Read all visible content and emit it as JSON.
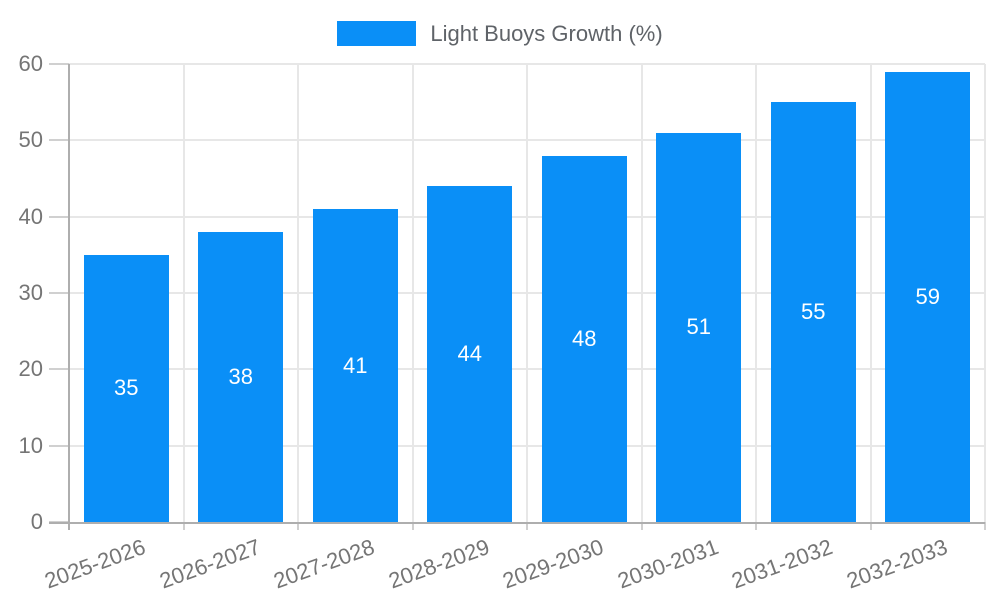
{
  "legend": {
    "label": "Light Buoys Growth (%)"
  },
  "chart_data": {
    "type": "bar",
    "title": "Light Buoys Growth (%)",
    "categories": [
      "2025-2026",
      "2026-2027",
      "2027-2028",
      "2028-2029",
      "2029-2030",
      "2030-2031",
      "2031-2032",
      "2032-2033"
    ],
    "values": [
      35,
      38,
      41,
      44,
      48,
      51,
      55,
      59
    ],
    "xlabel": "",
    "ylabel": "",
    "ylim": [
      0,
      60
    ],
    "yticks": [
      0,
      10,
      20,
      30,
      40,
      50,
      60
    ],
    "grid": true,
    "legend_position": "top-center",
    "value_labels": "centered-inside-bars-white"
  },
  "colors": {
    "bar": "#0a8ff7",
    "grid": "#e7e7e7",
    "tick": "#d0d0d0",
    "axis": "#aeaeae",
    "tick_label": "#757575",
    "legend_text": "#5f6368",
    "value_label": "#ffffff",
    "background": "#ffffff"
  }
}
